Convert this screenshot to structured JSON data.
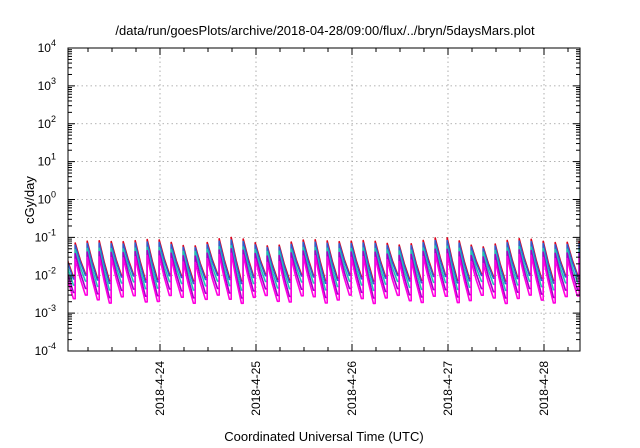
{
  "chart_data": {
    "type": "line",
    "title": "/data/run/goesPlots/archive/2018-04-28/09:00/flux/../bryn/5daysMars.plot",
    "xlabel": "Coordinated Universal Time (UTC)",
    "ylabel": "cGy/day",
    "y_scale": "log",
    "ylim": [
      0.0001,
      10000
    ],
    "xlim": [
      "2018-04-23 01:00",
      "2018-04-28 09:00"
    ],
    "grid": true,
    "legend": "none",
    "x_tick_labels": [
      "2018-4-24",
      "2018-4-25",
      "2018-4-26",
      "2018-4-27",
      "2018-4-28"
    ],
    "y_tick_labels": [
      {
        "base": "10",
        "exp": "-4"
      },
      {
        "base": "10",
        "exp": "-3"
      },
      {
        "base": "10",
        "exp": "-2"
      },
      {
        "base": "10",
        "exp": "-1"
      },
      {
        "base": "10",
        "exp": "0"
      },
      {
        "base": "10",
        "exp": "1"
      },
      {
        "base": "10",
        "exp": "2"
      },
      {
        "base": "10",
        "exp": "3"
      },
      {
        "base": "10",
        "exp": "4"
      }
    ],
    "cycle_hours": 3,
    "series": [
      {
        "color": "#e0001a",
        "peak": [
          0.055,
          0.1
        ],
        "trough": [
          0.007,
          0.011
        ]
      },
      {
        "color": "#2f5fd0",
        "peak": [
          0.05,
          0.085
        ],
        "trough": [
          0.006,
          0.01
        ]
      },
      {
        "color": "#1ec8b4",
        "peak": [
          0.04,
          0.06
        ],
        "trough": [
          0.004,
          0.007
        ]
      },
      {
        "color": "#a000c8",
        "peak": [
          0.03,
          0.05
        ],
        "trough": [
          0.0025,
          0.0045
        ]
      },
      {
        "color": "#ff00e0",
        "peak": [
          0.02,
          0.038
        ],
        "trough": [
          0.0018,
          0.003
        ]
      }
    ]
  }
}
